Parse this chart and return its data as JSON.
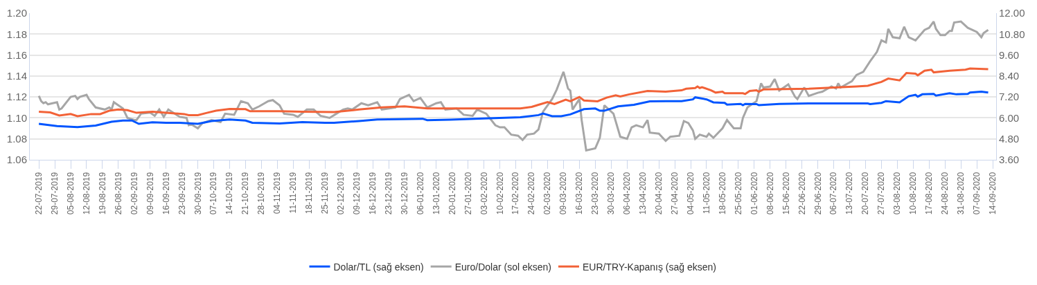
{
  "chart_data": {
    "type": "line",
    "grid": "y",
    "legend": "bottom",
    "line_style": "solid",
    "xlim": [
      "2019-07-18",
      "2020-09-15T12:00"
    ],
    "xticks": [
      {
        "value": "2019-07-22",
        "label": "22-07-2019"
      },
      {
        "value": "2019-07-29",
        "label": "29-07-2019"
      },
      {
        "value": "2019-08-05",
        "label": "05-08-2019"
      },
      {
        "value": "2019-08-12",
        "label": "12-08-2019"
      },
      {
        "value": "2019-08-19",
        "label": "19-08-2019"
      },
      {
        "value": "2019-08-26",
        "label": "26-08-2019"
      },
      {
        "value": "2019-09-02",
        "label": "02-09-2019"
      },
      {
        "value": "2019-09-09",
        "label": "09-09-2019"
      },
      {
        "value": "2019-09-16",
        "label": "16-09-2019"
      },
      {
        "value": "2019-09-23",
        "label": "23-09-2019"
      },
      {
        "value": "2019-09-30",
        "label": "30-09-2019"
      },
      {
        "value": "2019-10-07",
        "label": "07-10-2019"
      },
      {
        "value": "2019-10-14",
        "label": "14-10-2019"
      },
      {
        "value": "2019-10-21",
        "label": "21-10-2019"
      },
      {
        "value": "2019-10-28",
        "label": "28-10-2019"
      },
      {
        "value": "2019-11-04",
        "label": "04-11-2019"
      },
      {
        "value": "2019-11-11",
        "label": "11-11-2019"
      },
      {
        "value": "2019-11-18",
        "label": "18-11-2019"
      },
      {
        "value": "2019-11-25",
        "label": "25-11-2019"
      },
      {
        "value": "2019-12-02",
        "label": "02-12-2019"
      },
      {
        "value": "2019-12-09",
        "label": "09-12-2019"
      },
      {
        "value": "2019-12-16",
        "label": "16-12-2019"
      },
      {
        "value": "2019-12-23",
        "label": "23-12-2019"
      },
      {
        "value": "2019-12-30",
        "label": "30-12-2019"
      },
      {
        "value": "2020-01-06",
        "label": "06-01-2020"
      },
      {
        "value": "2020-01-13",
        "label": "13-01-2020"
      },
      {
        "value": "2020-01-20",
        "label": "20-01-2020"
      },
      {
        "value": "2020-01-27",
        "label": "27-01-2020"
      },
      {
        "value": "2020-02-03",
        "label": "03-02-2020"
      },
      {
        "value": "2020-02-10",
        "label": "10-02-2020"
      },
      {
        "value": "2020-02-17",
        "label": "17-02-2020"
      },
      {
        "value": "2020-02-24",
        "label": "24-02-2020"
      },
      {
        "value": "2020-03-02",
        "label": "02-03-2020"
      },
      {
        "value": "2020-03-09",
        "label": "09-03-2020"
      },
      {
        "value": "2020-03-16",
        "label": "16-03-2020"
      },
      {
        "value": "2020-03-23",
        "label": "23-03-2020"
      },
      {
        "value": "2020-03-30",
        "label": "30-03-2020"
      },
      {
        "value": "2020-04-06",
        "label": "06-04-2020"
      },
      {
        "value": "2020-04-13",
        "label": "13-04-2020"
      },
      {
        "value": "2020-04-20",
        "label": "20-04-2020"
      },
      {
        "value": "2020-04-27",
        "label": "27-04-2020"
      },
      {
        "value": "2020-05-04",
        "label": "04-05-2020"
      },
      {
        "value": "2020-05-11",
        "label": "11-05-2020"
      },
      {
        "value": "2020-05-18",
        "label": "18-05-2020"
      },
      {
        "value": "2020-05-25",
        "label": "25-05-2020"
      },
      {
        "value": "2020-06-01",
        "label": "01-06-2020"
      },
      {
        "value": "2020-06-08",
        "label": "08-06-2020"
      },
      {
        "value": "2020-06-15",
        "label": "15-06-2020"
      },
      {
        "value": "2020-06-22",
        "label": "22-06-2020"
      },
      {
        "value": "2020-06-29",
        "label": "29-06-2020"
      },
      {
        "value": "2020-07-06",
        "label": "06-07-2020"
      },
      {
        "value": "2020-07-13",
        "label": "13-07-2020"
      },
      {
        "value": "2020-07-20",
        "label": "20-07-2020"
      },
      {
        "value": "2020-07-27",
        "label": "27-07-2020"
      },
      {
        "value": "2020-08-03",
        "label": "03-08-2020"
      },
      {
        "value": "2020-08-10",
        "label": "10-08-2020"
      },
      {
        "value": "2020-08-17",
        "label": "17-08-2020"
      },
      {
        "value": "2020-08-24",
        "label": "24-08-2020"
      },
      {
        "value": "2020-08-31",
        "label": "31-08-2020"
      },
      {
        "value": "2020-09-07",
        "label": "07-09-2020"
      },
      {
        "value": "2020-09-14",
        "label": "14-09-2020"
      }
    ],
    "ylim": [
      1.06,
      1.2
    ],
    "yticks": [
      {
        "value": 1.06,
        "label": "1.06"
      },
      {
        "value": 1.08,
        "label": "1.08"
      },
      {
        "value": 1.1,
        "label": "1.10"
      },
      {
        "value": 1.12,
        "label": "1.12"
      },
      {
        "value": 1.14,
        "label": "1.14"
      },
      {
        "value": 1.16,
        "label": "1.16"
      },
      {
        "value": 1.18,
        "label": "1.18"
      },
      {
        "value": 1.2,
        "label": "1.20"
      }
    ],
    "y2lim": [
      3.6,
      12
    ],
    "y2ticks": [
      {
        "value": 3.6,
        "label": "3.60"
      },
      {
        "value": 4.8,
        "label": "4.80"
      },
      {
        "value": 6,
        "label": "6.00"
      },
      {
        "value": 7.2,
        "label": "7.20"
      },
      {
        "value": 8.4,
        "label": "8.40"
      },
      {
        "value": 9.6,
        "label": "9.60"
      },
      {
        "value": 10.8,
        "label": "10.80"
      },
      {
        "value": 12,
        "label": "12.00"
      }
    ],
    "series": [
      {
        "name": "Dolar/TL (sağ eksen)",
        "color": "#0055ff",
        "axis": "y2",
        "x": [
          "2019-07-22",
          "2019-07-30",
          "2019-08-08",
          "2019-08-16",
          "2019-08-23",
          "2019-08-28",
          "2019-09-01",
          "2019-09-04",
          "2019-09-10",
          "2019-09-16",
          "2019-09-22",
          "2019-09-30",
          "2019-10-06",
          "2019-10-14",
          "2019-10-21",
          "2019-10-24",
          "2019-11-05",
          "2019-11-15",
          "2019-11-25",
          "2019-11-29",
          "2019-12-10",
          "2019-12-18",
          "2020-01-07",
          "2020-01-09",
          "2020-01-19",
          "2020-02-03",
          "2020-02-19",
          "2020-02-27",
          "2020-02-29",
          "2020-03-04",
          "2020-03-08",
          "2020-03-12",
          "2020-03-18",
          "2020-03-23",
          "2020-03-25",
          "2020-03-27",
          "2020-04-02",
          "2020-04-09",
          "2020-04-16",
          "2020-04-23",
          "2020-04-30",
          "2020-05-05",
          "2020-05-06",
          "2020-05-11",
          "2020-05-14",
          "2020-05-19",
          "2020-05-20",
          "2020-05-26",
          "2020-05-27",
          "2020-05-28",
          "2020-06-02",
          "2020-06-03",
          "2020-06-12",
          "2020-06-25",
          "2020-07-21",
          "2020-07-22",
          "2020-07-27",
          "2020-07-29",
          "2020-08-04",
          "2020-08-08",
          "2020-08-11",
          "2020-08-12",
          "2020-08-14",
          "2020-08-19",
          "2020-08-20",
          "2020-08-26",
          "2020-08-29",
          "2020-09-03",
          "2020-09-04",
          "2020-09-09",
          "2020-09-12"
        ],
        "values": [
          5.66,
          5.53,
          5.47,
          5.56,
          5.78,
          5.85,
          5.85,
          5.66,
          5.75,
          5.72,
          5.72,
          5.66,
          5.82,
          5.91,
          5.85,
          5.72,
          5.68,
          5.76,
          5.72,
          5.72,
          5.82,
          5.91,
          5.95,
          5.87,
          5.9,
          5.97,
          6.04,
          6.16,
          6.25,
          6.1,
          6.1,
          6.2,
          6.5,
          6.54,
          6.41,
          6.41,
          6.66,
          6.75,
          6.95,
          6.96,
          6.96,
          7.06,
          7.18,
          7.06,
          6.89,
          6.86,
          6.76,
          6.8,
          6.73,
          6.8,
          6.79,
          6.73,
          6.8,
          6.83,
          6.83,
          6.79,
          6.86,
          6.96,
          6.89,
          7.24,
          7.32,
          7.22,
          7.35,
          7.37,
          7.28,
          7.41,
          7.35,
          7.37,
          7.45,
          7.5,
          7.45
        ]
      },
      {
        "name": "Euro/Dolar (sol eksen)",
        "color": "#a6a6a6",
        "axis": "y",
        "x": [
          "2019-07-22",
          "2019-07-23",
          "2019-07-24",
          "2019-07-25",
          "2019-07-26",
          "2019-07-30",
          "2019-07-31",
          "2019-08-01",
          "2019-08-05",
          "2019-08-07",
          "2019-08-08",
          "2019-08-09",
          "2019-08-12",
          "2019-08-13",
          "2019-08-16",
          "2019-08-20",
          "2019-08-22",
          "2019-08-23",
          "2019-08-24",
          "2019-08-28",
          "2019-08-30",
          "2019-09-02",
          "2019-09-03",
          "2019-09-05",
          "2019-09-09",
          "2019-09-11",
          "2019-09-13",
          "2019-09-15",
          "2019-09-17",
          "2019-09-22",
          "2019-09-25",
          "2019-09-26",
          "2019-09-27",
          "2019-09-30",
          "2019-10-02",
          "2019-10-06",
          "2019-10-10",
          "2019-10-12",
          "2019-10-16",
          "2019-10-19",
          "2019-10-22",
          "2019-10-24",
          "2019-10-27",
          "2019-10-31",
          "2019-11-02",
          "2019-11-05",
          "2019-11-07",
          "2019-11-11",
          "2019-11-13",
          "2019-11-17",
          "2019-11-20",
          "2019-11-23",
          "2019-11-27",
          "2019-11-30",
          "2019-12-03",
          "2019-12-05",
          "2019-12-07",
          "2019-12-11",
          "2019-12-14",
          "2019-12-18",
          "2019-12-20",
          "2019-12-26",
          "2019-12-28",
          "2020-01-01",
          "2020-01-03",
          "2020-01-06",
          "2020-01-09",
          "2020-01-13",
          "2020-01-15",
          "2020-01-17",
          "2020-01-22",
          "2020-01-25",
          "2020-01-29",
          "2020-01-31",
          "2020-02-04",
          "2020-02-08",
          "2020-02-10",
          "2020-02-12",
          "2020-02-15",
          "2020-02-18",
          "2020-02-20",
          "2020-02-22",
          "2020-02-25",
          "2020-02-27",
          "2020-02-29",
          "2020-03-04",
          "2020-03-06",
          "2020-03-09",
          "2020-03-11",
          "2020-03-12",
          "2020-03-13",
          "2020-03-16",
          "2020-03-17",
          "2020-03-19",
          "2020-03-23",
          "2020-03-25",
          "2020-03-27",
          "2020-03-31",
          "2020-04-03",
          "2020-04-06",
          "2020-04-08",
          "2020-04-10",
          "2020-04-13",
          "2020-04-15",
          "2020-04-16",
          "2020-04-20",
          "2020-04-23",
          "2020-04-25",
          "2020-04-29",
          "2020-05-01",
          "2020-05-03",
          "2020-05-05",
          "2020-05-06",
          "2020-05-08",
          "2020-05-11",
          "2020-05-12",
          "2020-05-14",
          "2020-05-18",
          "2020-05-20",
          "2020-05-23",
          "2020-05-26",
          "2020-05-27",
          "2020-05-29",
          "2020-06-02",
          "2020-06-04",
          "2020-06-05",
          "2020-06-08",
          "2020-06-10",
          "2020-06-12",
          "2020-06-16",
          "2020-06-19",
          "2020-06-20",
          "2020-06-23",
          "2020-06-25",
          "2020-06-29",
          "2020-07-01",
          "2020-07-05",
          "2020-07-07",
          "2020-07-08",
          "2020-07-09",
          "2020-07-14",
          "2020-07-16",
          "2020-07-19",
          "2020-07-22",
          "2020-07-25",
          "2020-07-27",
          "2020-07-29",
          "2020-07-30",
          "2020-08-01",
          "2020-08-04",
          "2020-08-06",
          "2020-08-08",
          "2020-08-11",
          "2020-08-15",
          "2020-08-17",
          "2020-08-19",
          "2020-08-20",
          "2020-08-22",
          "2020-08-24",
          "2020-08-26",
          "2020-08-27",
          "2020-08-28",
          "2020-08-31",
          "2020-09-03",
          "2020-09-07",
          "2020-09-09",
          "2020-09-10",
          "2020-09-12"
        ],
        "values": [
          1.121,
          1.116,
          1.114,
          1.115,
          1.113,
          1.115,
          1.108,
          1.109,
          1.12,
          1.121,
          1.118,
          1.12,
          1.122,
          1.118,
          1.11,
          1.108,
          1.11,
          1.108,
          1.115,
          1.109,
          1.1,
          1.098,
          1.098,
          1.104,
          1.105,
          1.102,
          1.108,
          1.101,
          1.108,
          1.101,
          1.1,
          1.093,
          1.094,
          1.09,
          1.095,
          1.098,
          1.096,
          1.104,
          1.103,
          1.116,
          1.114,
          1.108,
          1.111,
          1.116,
          1.117,
          1.112,
          1.104,
          1.103,
          1.101,
          1.108,
          1.108,
          1.102,
          1.1,
          1.104,
          1.108,
          1.109,
          1.108,
          1.114,
          1.112,
          1.115,
          1.108,
          1.11,
          1.118,
          1.122,
          1.116,
          1.119,
          1.11,
          1.114,
          1.115,
          1.108,
          1.109,
          1.103,
          1.102,
          1.108,
          1.104,
          1.093,
          1.091,
          1.091,
          1.084,
          1.083,
          1.079,
          1.084,
          1.085,
          1.089,
          1.106,
          1.118,
          1.127,
          1.144,
          1.128,
          1.126,
          1.108,
          1.118,
          1.098,
          1.069,
          1.071,
          1.081,
          1.112,
          1.104,
          1.082,
          1.08,
          1.091,
          1.093,
          1.091,
          1.098,
          1.086,
          1.085,
          1.078,
          1.082,
          1.083,
          1.097,
          1.095,
          1.088,
          1.08,
          1.084,
          1.082,
          1.085,
          1.081,
          1.09,
          1.098,
          1.09,
          1.09,
          1.1,
          1.11,
          1.116,
          1.133,
          1.129,
          1.13,
          1.137,
          1.126,
          1.132,
          1.12,
          1.118,
          1.129,
          1.121,
          1.124,
          1.125,
          1.13,
          1.128,
          1.133,
          1.129,
          1.135,
          1.141,
          1.144,
          1.154,
          1.163,
          1.174,
          1.172,
          1.185,
          1.177,
          1.176,
          1.187,
          1.177,
          1.174,
          1.184,
          1.186,
          1.192,
          1.185,
          1.179,
          1.179,
          1.183,
          1.183,
          1.191,
          1.192,
          1.186,
          1.182,
          1.177,
          1.181,
          1.184
        ]
      },
      {
        "name": "EUR/TRY-Kapanış (sağ eksen)",
        "color": "#f26237",
        "axis": "y2",
        "x": [
          "2019-07-22",
          "2019-07-27",
          "2019-07-31",
          "2019-08-05",
          "2019-08-08",
          "2019-08-14",
          "2019-08-18",
          "2019-08-22",
          "2019-08-26",
          "2019-08-30",
          "2019-09-03",
          "2019-09-10",
          "2019-09-16",
          "2019-09-24",
          "2019-09-26",
          "2019-09-30",
          "2019-10-04",
          "2019-10-08",
          "2019-10-14",
          "2019-10-21",
          "2019-10-23",
          "2019-11-05",
          "2019-11-15",
          "2019-11-29",
          "2019-12-10",
          "2019-12-20",
          "2019-12-30",
          "2020-01-09",
          "2020-01-29",
          "2020-02-19",
          "2020-02-24",
          "2020-02-27",
          "2020-03-02",
          "2020-03-05",
          "2020-03-10",
          "2020-03-12",
          "2020-03-16",
          "2020-03-18",
          "2020-03-24",
          "2020-03-28",
          "2020-04-01",
          "2020-04-03",
          "2020-04-07",
          "2020-04-15",
          "2020-04-23",
          "2020-04-30",
          "2020-05-02",
          "2020-05-06",
          "2020-05-07",
          "2020-05-08",
          "2020-05-09",
          "2020-05-13",
          "2020-05-15",
          "2020-05-18",
          "2020-05-19",
          "2020-05-27",
          "2020-05-28",
          "2020-05-30",
          "2020-06-02",
          "2020-06-03",
          "2020-06-05",
          "2020-06-25",
          "2020-07-16",
          "2020-07-21",
          "2020-07-27",
          "2020-07-30",
          "2020-08-04",
          "2020-08-07",
          "2020-08-11",
          "2020-08-12",
          "2020-08-15",
          "2020-08-18",
          "2020-08-19",
          "2020-08-23",
          "2020-08-26",
          "2020-09-02",
          "2020-09-04",
          "2020-09-12"
        ],
        "values": [
          6.35,
          6.31,
          6.14,
          6.22,
          6.1,
          6.22,
          6.22,
          6.41,
          6.48,
          6.44,
          6.29,
          6.35,
          6.29,
          6.22,
          6.16,
          6.16,
          6.29,
          6.41,
          6.51,
          6.5,
          6.38,
          6.38,
          6.35,
          6.33,
          6.48,
          6.6,
          6.66,
          6.54,
          6.54,
          6.54,
          6.63,
          6.75,
          6.91,
          6.79,
          7.04,
          6.95,
          7.2,
          7.0,
          6.95,
          7.16,
          7.29,
          7.23,
          7.35,
          7.54,
          7.5,
          7.58,
          7.67,
          7.71,
          7.8,
          7.71,
          7.76,
          7.58,
          7.45,
          7.5,
          7.41,
          7.41,
          7.37,
          7.54,
          7.58,
          7.5,
          7.63,
          7.67,
          7.8,
          7.84,
          8.06,
          8.25,
          8.15,
          8.57,
          8.53,
          8.44,
          8.7,
          8.76,
          8.61,
          8.66,
          8.7,
          8.76,
          8.83,
          8.79
        ]
      }
    ]
  }
}
